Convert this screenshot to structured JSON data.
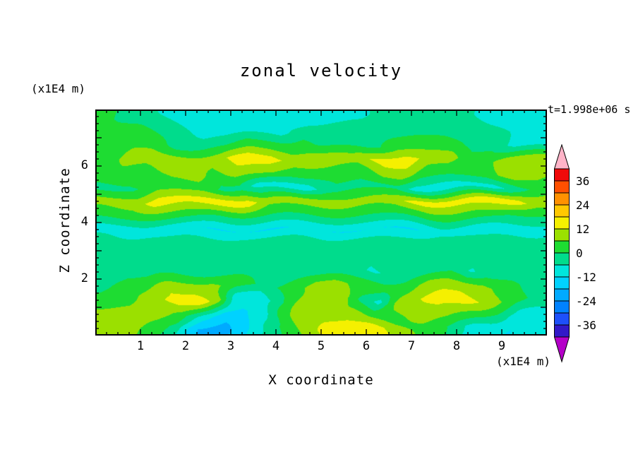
{
  "chart_data": {
    "type": "heatmap",
    "title": "zonal velocity",
    "time_annotation": "t=1.998e+06 s",
    "xlabel": "X coordinate",
    "ylabel": "Z coordinate",
    "x_unit_label": "(x1E4 m)",
    "y_unit_label": "(x1E4 m)",
    "xlim": [
      0,
      10
    ],
    "zlim": [
      0,
      8
    ],
    "x_ticks_labeled": [
      1,
      2,
      3,
      4,
      5,
      6,
      7,
      8,
      9
    ],
    "z_ticks_labeled": [
      2,
      4,
      6
    ],
    "minor_tick_step": 0.25,
    "grid": false,
    "legend_position": "right-colorbar",
    "levels": [
      -42,
      -36,
      -30,
      -24,
      -18,
      -12,
      -6,
      0,
      6,
      12,
      18,
      24,
      30,
      36,
      42
    ],
    "band_colors": [
      "#3219C8",
      "#1E50FA",
      "#0082FF",
      "#00AAFF",
      "#00D2FF",
      "#00E6DC",
      "#00DC8C",
      "#1EDC32",
      "#9BE000",
      "#F5F000",
      "#FFC800",
      "#FF9100",
      "#FF5000",
      "#F00A0A"
    ],
    "under_color": "#B400C8",
    "over_color": "#FFB4C8",
    "colorbar_labels": [
      "36",
      "24",
      "12",
      "0",
      "-12",
      "-24",
      "-36"
    ],
    "x": [
      0.25,
      0.75,
      1.25,
      1.75,
      2.25,
      2.75,
      3.25,
      3.75,
      4.25,
      4.75,
      5.25,
      5.75,
      6.25,
      6.75,
      7.25,
      7.75,
      8.25,
      8.75,
      9.25,
      9.75
    ],
    "z": [
      7.75,
      7.25,
      6.75,
      6.25,
      5.75,
      5.25,
      4.75,
      4.25,
      3.75,
      3.25,
      2.75,
      2.25,
      1.75,
      1.25,
      0.75,
      0.25
    ],
    "values": [
      [
        3,
        -2,
        -2,
        -9,
        -9,
        -9,
        -9,
        -9,
        -9,
        -9,
        -9,
        -9,
        -2,
        -2,
        -2,
        -2,
        -2,
        -9,
        -9,
        -9
      ],
      [
        3,
        3,
        -2,
        -2,
        -9,
        -9,
        -9,
        -9,
        -9,
        -2,
        -2,
        -2,
        -2,
        -2,
        -2,
        -2,
        -2,
        -2,
        -9,
        -9
      ],
      [
        3,
        3,
        3,
        -2,
        -2,
        -2,
        3,
        3,
        3,
        3,
        -2,
        -2,
        -2,
        3,
        3,
        3,
        -2,
        -2,
        -9,
        -9
      ],
      [
        3,
        9,
        9,
        9,
        9,
        9,
        15,
        15,
        9,
        9,
        9,
        9,
        15,
        15,
        9,
        9,
        3,
        3,
        9,
        9
      ],
      [
        3,
        3,
        3,
        9,
        9,
        3,
        9,
        9,
        3,
        3,
        3,
        3,
        9,
        9,
        3,
        3,
        3,
        3,
        9,
        9
      ],
      [
        -2,
        -2,
        3,
        3,
        3,
        -2,
        -2,
        -9,
        -9,
        -9,
        -2,
        -2,
        -2,
        -2,
        -9,
        -9,
        -9,
        -9,
        -2,
        3
      ],
      [
        9,
        9,
        15,
        15,
        15,
        15,
        15,
        9,
        9,
        9,
        9,
        9,
        9,
        9,
        15,
        15,
        15,
        15,
        15,
        9
      ],
      [
        3,
        3,
        3,
        3,
        3,
        0,
        0,
        0,
        0,
        0,
        0,
        0,
        0,
        0,
        3,
        3,
        3,
        3,
        0,
        0
      ],
      [
        -9,
        -9,
        -9,
        -12,
        -12,
        -12,
        -12,
        -12,
        -12,
        -12,
        -12,
        -12,
        -12,
        -12,
        -12,
        -9,
        -9,
        -9,
        -9,
        -9
      ],
      [
        -2,
        -2,
        -2,
        -2,
        -2,
        -2,
        -2,
        -2,
        -2,
        -2,
        -2,
        -2,
        -2,
        -2,
        -2,
        -2,
        -2,
        -2,
        -2,
        -2
      ],
      [
        -2,
        -2,
        -2,
        -2,
        -2,
        -2,
        -2,
        -2,
        -2,
        -2,
        -2,
        -2,
        -2,
        -2,
        -2,
        -2,
        -2,
        -2,
        -2,
        -2
      ],
      [
        -2,
        -2,
        -2,
        -2,
        -2,
        -2,
        -2,
        -2,
        -2,
        -2,
        -2,
        -2,
        -7,
        -2,
        -2,
        -2,
        -7,
        -2,
        -2,
        -2
      ],
      [
        -2,
        3,
        3,
        9,
        9,
        9,
        3,
        -2,
        3,
        9,
        9,
        3,
        3,
        3,
        9,
        9,
        9,
        9,
        3,
        -2
      ],
      [
        3,
        3,
        9,
        15,
        15,
        9,
        -9,
        -12,
        -2,
        12,
        12,
        -2,
        -9,
        9,
        12,
        15,
        15,
        9,
        3,
        -2
      ],
      [
        9,
        9,
        9,
        3,
        -9,
        -15,
        -12,
        -9,
        3,
        9,
        9,
        9,
        3,
        3,
        9,
        9,
        3,
        -2,
        -9,
        -9
      ],
      [
        9,
        9,
        3,
        -2,
        -18,
        -21,
        -12,
        -2,
        3,
        9,
        15,
        15,
        15,
        9,
        3,
        -2,
        -9,
        -9,
        -12,
        -9
      ]
    ]
  }
}
